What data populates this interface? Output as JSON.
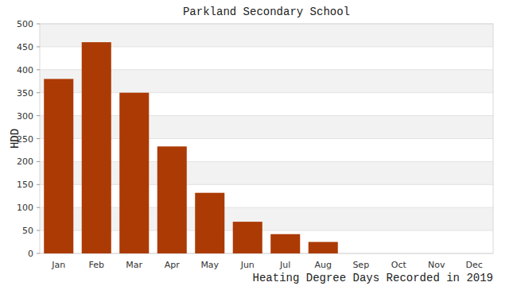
{
  "chart_data": {
    "type": "bar",
    "title": "Parkland Secondary School",
    "xlabel": "Heating Degree Days Recorded in 2019",
    "ylabel": "HDD",
    "categories": [
      "Jan",
      "Feb",
      "Mar",
      "Apr",
      "May",
      "Jun",
      "Jul",
      "Aug",
      "Sep",
      "Oct",
      "Nov",
      "Dec"
    ],
    "values": [
      380,
      460,
      350,
      233,
      132,
      69,
      42,
      25,
      0,
      0,
      0,
      0
    ],
    "color": "#ac3a05",
    "ylim": [
      0,
      500
    ],
    "yticks": [
      0,
      50,
      100,
      150,
      200,
      250,
      300,
      350,
      400,
      450,
      500
    ],
    "grid": true
  }
}
